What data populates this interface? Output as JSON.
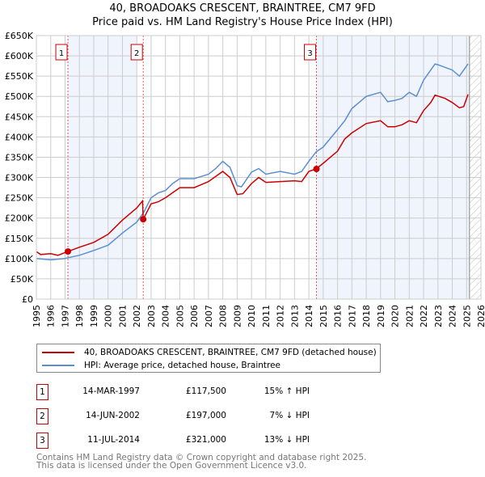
{
  "title": "40, BROADOAKS CRESCENT, BRAINTREE, CM7 9FD",
  "subtitle": "Price paid vs. HM Land Registry's House Price Index (HPI)",
  "chart_data": {
    "type": "line",
    "xlim": [
      1995,
      2026
    ],
    "ylim": [
      0,
      650000
    ],
    "x_ticks": [
      "1995",
      "1996",
      "1997",
      "1998",
      "1999",
      "2000",
      "2001",
      "2002",
      "2003",
      "2004",
      "2005",
      "2006",
      "2007",
      "2008",
      "2009",
      "2010",
      "2011",
      "2012",
      "2013",
      "2014",
      "2015",
      "2016",
      "2017",
      "2018",
      "2019",
      "2020",
      "2021",
      "2022",
      "2023",
      "2024",
      "2025",
      "2026"
    ],
    "y_ticks": [
      {
        "value": 0,
        "label": "£0"
      },
      {
        "value": 50000,
        "label": "£50K"
      },
      {
        "value": 100000,
        "label": "£100K"
      },
      {
        "value": 150000,
        "label": "£150K"
      },
      {
        "value": 200000,
        "label": "£200K"
      },
      {
        "value": 250000,
        "label": "£250K"
      },
      {
        "value": 300000,
        "label": "£300K"
      },
      {
        "value": 350000,
        "label": "£350K"
      },
      {
        "value": 400000,
        "label": "£400K"
      },
      {
        "value": 450000,
        "label": "£450K"
      },
      {
        "value": 500000,
        "label": "£500K"
      },
      {
        "value": 550000,
        "label": "£550K"
      },
      {
        "value": 600000,
        "label": "£600K"
      },
      {
        "value": 650000,
        "label": "£650K"
      }
    ],
    "grid": true,
    "shaded_ranges": [
      [
        1997.2,
        2002.0
      ],
      [
        2014.5,
        2025.2
      ]
    ],
    "hatched_range": [
      2025.2,
      2026
    ],
    "series": [
      {
        "name": "40, BROADOAKS CRESCENT, BRAINTREE, CM7 9FD (detached house)",
        "color": "#cc0000",
        "x": [
          1995,
          1995.3,
          1996,
          1996.5,
          1997.2,
          1998,
          1999,
          2000,
          2001,
          2002,
          2002.4,
          2002.45,
          2003,
          2003.5,
          2004,
          2005,
          2006,
          2007,
          2008,
          2008.5,
          2009,
          2009.4,
          2010,
          2010.5,
          2011,
          2012,
          2013,
          2013.5,
          2014,
          2014.5,
          2015,
          2016,
          2016.5,
          2017,
          2018,
          2019,
          2019.5,
          2020,
          2020.5,
          2021,
          2021.5,
          2022,
          2022.5,
          2022.8,
          2023.5,
          2024,
          2024.5,
          2024.8,
          2025.1
        ],
        "y": [
          117000,
          110000,
          112000,
          108000,
          117500,
          128000,
          140000,
          160000,
          195000,
          225000,
          242000,
          197000,
          235000,
          240000,
          250000,
          275000,
          275000,
          290000,
          315000,
          300000,
          258000,
          260000,
          285000,
          300000,
          288000,
          290000,
          292000,
          290000,
          315000,
          321000,
          335000,
          365000,
          395000,
          410000,
          433000,
          440000,
          425000,
          425000,
          430000,
          440000,
          435000,
          465000,
          485000,
          503000,
          495000,
          485000,
          472000,
          475000,
          505000
        ]
      },
      {
        "name": "HPI: Average price, detached house, Braintree",
        "color": "#5b8fd0",
        "x": [
          1995,
          1996,
          1997,
          1997.2,
          1998,
          1999,
          2000,
          2001,
          2002,
          2002.5,
          2003,
          2003.5,
          2004,
          2004.5,
          2005,
          2006,
          2007,
          2007.5,
          2008,
          2008.5,
          2009,
          2009.3,
          2010,
          2010.5,
          2011,
          2012,
          2013,
          2013.5,
          2014,
          2014.5,
          2015,
          2016,
          2016.5,
          2017,
          2018,
          2019,
          2019.5,
          2020,
          2020.5,
          2021,
          2021.5,
          2022,
          2022.5,
          2022.8,
          2023,
          2024,
          2024.5,
          2024.7,
          2025.1
        ],
        "y": [
          100000,
          97000,
          100000,
          102000,
          108000,
          120000,
          133000,
          163000,
          190000,
          215000,
          250000,
          262000,
          268000,
          285000,
          297000,
          297000,
          308000,
          322000,
          340000,
          325000,
          280000,
          277000,
          313000,
          322000,
          308000,
          315000,
          308000,
          315000,
          340000,
          363000,
          375000,
          418000,
          440000,
          470000,
          500000,
          510000,
          487000,
          490000,
          495000,
          510000,
          500000,
          540000,
          565000,
          580000,
          578000,
          565000,
          550000,
          560000,
          580000
        ]
      }
    ],
    "sales": [
      {
        "label": "1",
        "x": 1997.2,
        "y": 117500
      },
      {
        "label": "2",
        "x": 2002.45,
        "y": 197000
      },
      {
        "label": "3",
        "x": 2014.53,
        "y": 321000
      }
    ]
  },
  "legend": {
    "property": "40, BROADOAKS CRESCENT, BRAINTREE, CM7 9FD (detached house)",
    "hpi": "HPI: Average price, detached house, Braintree"
  },
  "transactions": [
    {
      "num": "1",
      "date": "14-MAR-1997",
      "price": "£117,500",
      "hpi": "15% ↑ HPI"
    },
    {
      "num": "2",
      "date": "14-JUN-2002",
      "price": "£197,000",
      "hpi": "7% ↓ HPI"
    },
    {
      "num": "3",
      "date": "11-JUL-2014",
      "price": "£321,000",
      "hpi": "13% ↓ HPI"
    }
  ],
  "footer": {
    "line1": "Contains HM Land Registry data © Crown copyright and database right 2025.",
    "line2": "This data is licensed under the Open Government Licence v3.0."
  }
}
